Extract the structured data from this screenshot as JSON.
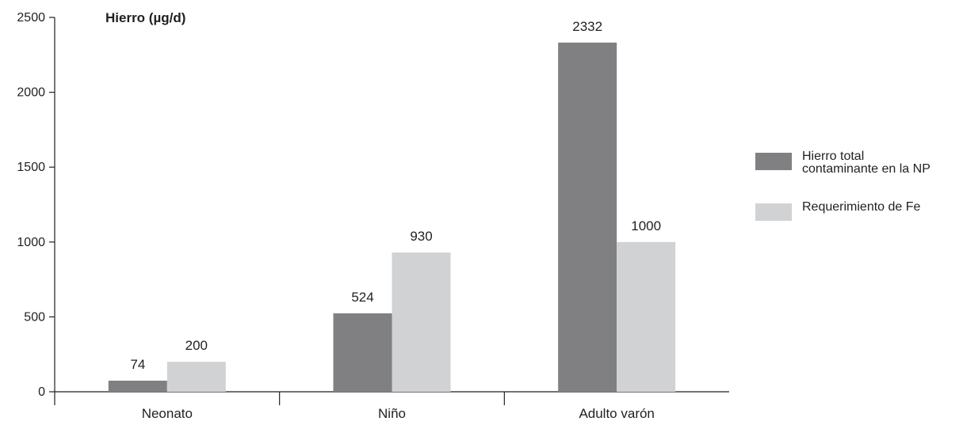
{
  "chart_data": {
    "type": "bar",
    "title": "Hierro (µg/d)",
    "categories": [
      "Neonato",
      "Niño",
      "Adulto varón"
    ],
    "series": [
      {
        "name": "Hierro total contaminante en la NP",
        "values": [
          74,
          524,
          2332
        ],
        "color": "#808083"
      },
      {
        "name": "Requerimiento de Fe",
        "values": [
          200,
          930,
          1000
        ],
        "color": "#d1d2d4"
      }
    ],
    "ylim": [
      0,
      2500
    ],
    "yticks": [
      0,
      500,
      1000,
      1500,
      2000,
      2500
    ],
    "xlabel": "",
    "ylabel": "",
    "grid": false,
    "legend_position": "right"
  },
  "legend": {
    "items": [
      {
        "label_line1": "Hierro total",
        "label_line2": "contaminante en la NP",
        "color": "#808083"
      },
      {
        "label_line1": "Requerimiento de Fe",
        "label_line2": "",
        "color": "#d1d2d4"
      }
    ]
  }
}
